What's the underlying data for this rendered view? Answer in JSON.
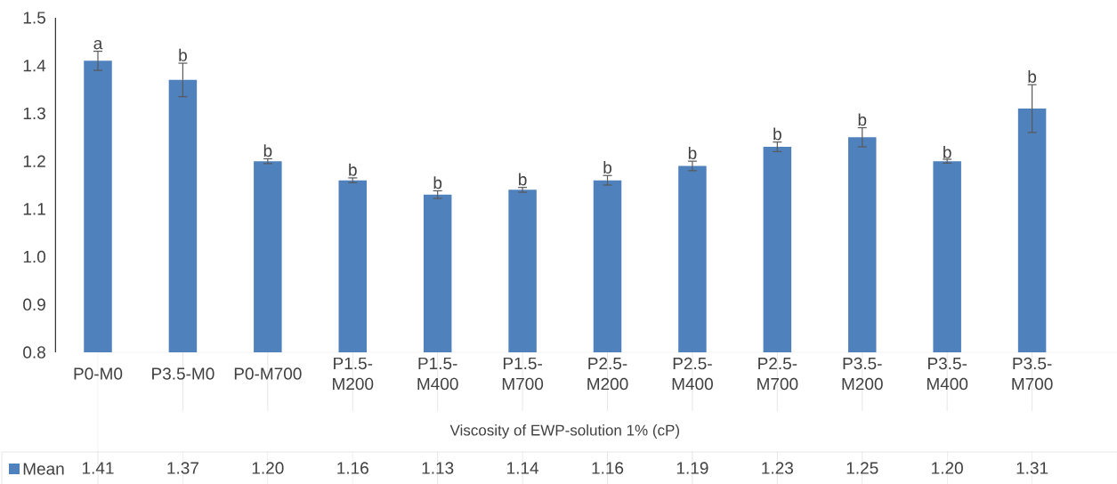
{
  "chart_data": {
    "type": "bar",
    "xlabel": "Viscosity of EWP-solution 1% (cP)",
    "categories": [
      "P0-M0",
      "P3.5-M0",
      "P0-M700",
      "P1.5-M200",
      "P1.5-M400",
      "P1.5-M700",
      "P2.5-M200",
      "P2.5-M400",
      "P2.5-M700",
      "P3.5-M200",
      "P3.5-M400",
      "P3.5-M700"
    ],
    "series": [
      {
        "name": "Mean",
        "color": "#4f81bd",
        "values": [
          1.41,
          1.37,
          1.2,
          1.16,
          1.13,
          1.14,
          1.16,
          1.19,
          1.23,
          1.25,
          1.2,
          1.31
        ],
        "errors": [
          0.02,
          0.035,
          0.005,
          0.005,
          0.008,
          0.005,
          0.01,
          0.01,
          0.01,
          0.02,
          0.004,
          0.05
        ],
        "value_labels": [
          "1.41",
          "1.37",
          "1.20",
          "1.16",
          "1.13",
          "1.14",
          "1.16",
          "1.19",
          "1.23",
          "1.25",
          "1.20",
          "1.31"
        ]
      }
    ],
    "ylim": [
      0.8,
      1.5
    ],
    "yticks": [
      0.8,
      0.9,
      {
        "value": 1.0,
        "label": "1.0"
      },
      1.1,
      1.2,
      1.3,
      1.4,
      1.5
    ],
    "annotations": [
      {
        "text": "a",
        "x": "P0-M0",
        "y": 1.43
      },
      {
        "text": "b",
        "x": "P3.5-M0",
        "y": 1.405
      },
      {
        "text": "b",
        "x": "P0-M700",
        "y": 1.205
      },
      {
        "text": "b",
        "x": "P1.5-M200",
        "y": 1.165
      },
      {
        "text": "b",
        "x": "P1.5-M400",
        "y": 1.138
      },
      {
        "text": "b",
        "x": "P1.5-M700",
        "y": 1.145
      },
      {
        "text": "b",
        "x": "P2.5-M200",
        "y": 1.17
      },
      {
        "text": "b",
        "x": "P2.5-M400",
        "y": 1.2
      },
      {
        "text": "b",
        "x": "P2.5-M700",
        "y": 1.24
      },
      {
        "text": "b",
        "x": "P3.5-M200",
        "y": 1.27
      },
      {
        "text": "b",
        "x": "P3.5-M400",
        "y": 1.202
      },
      {
        "text": "b",
        "x": "P3.5-M700",
        "y": 1.36
      }
    ],
    "grid": false,
    "legend": "bottom"
  }
}
